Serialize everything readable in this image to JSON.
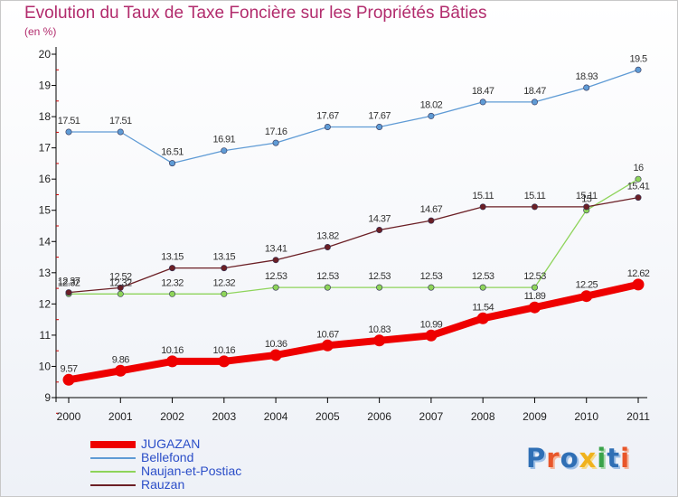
{
  "title": "Evolution du Taux de Taxe Foncière sur les Propriétés Bâties",
  "subtitle": "(en %)",
  "logo": "Proxiti",
  "chart_data": {
    "type": "line",
    "title": "Evolution du Taux de Taxe Foncière sur les Propriétés Bâties",
    "ylabel": "(en %)",
    "xlabel": "",
    "categories": [
      "2000",
      "2001",
      "2002",
      "2003",
      "2004",
      "2005",
      "2006",
      "2007",
      "2008",
      "2009",
      "2010",
      "2011"
    ],
    "ylim": [
      9,
      20
    ],
    "yticks": [
      "9",
      "10",
      "11",
      "12",
      "13",
      "14",
      "15",
      "16",
      "17",
      "18",
      "19",
      "20"
    ],
    "grid": false,
    "legend_position": "bottom-left",
    "series": [
      {
        "name": "JUGAZAN",
        "color": "#ee0000",
        "values": [
          9.57,
          9.86,
          10.16,
          10.16,
          10.36,
          10.67,
          10.83,
          10.99,
          11.54,
          11.89,
          12.25,
          12.62
        ],
        "labels": [
          "9.57",
          "9.86",
          "10.16",
          "10.16",
          "10.36",
          "10.67",
          "10.83",
          "10.99",
          "11.54",
          "11.89",
          "12.25",
          "12.62"
        ]
      },
      {
        "name": "Bellefond",
        "color": "#5f9bd5",
        "values": [
          17.51,
          17.51,
          16.51,
          16.91,
          17.16,
          17.67,
          17.67,
          18.02,
          18.47,
          18.47,
          18.93,
          19.5
        ],
        "labels": [
          "17.51",
          "17.51",
          "16.51",
          "16.91",
          "17.16",
          "17.67",
          "17.67",
          "18.02",
          "18.47",
          "18.47",
          "18.93",
          "19.5"
        ]
      },
      {
        "name": "Naujan-et-Postiac",
        "color": "#8ed45a",
        "values": [
          12.32,
          12.32,
          12.32,
          12.32,
          12.53,
          12.53,
          12.53,
          12.53,
          12.53,
          12.53,
          15,
          16
        ],
        "labels": [
          "12.32",
          "12.32",
          "12.32",
          "12.32",
          "12.53",
          "12.53",
          "12.53",
          "12.53",
          "12.53",
          "12.53",
          "15",
          "16"
        ]
      },
      {
        "name": "Rauzan",
        "color": "#6b1f25",
        "values": [
          12.37,
          12.52,
          13.15,
          13.15,
          13.41,
          13.82,
          14.37,
          14.67,
          15.11,
          15.11,
          15.11,
          15.41
        ],
        "labels": [
          "12.37",
          "12.52",
          "13.15",
          "13.15",
          "13.41",
          "13.82",
          "14.37",
          "14.67",
          "15.11",
          "15.11",
          "15.11",
          "15.41"
        ]
      }
    ]
  },
  "colors": {
    "title": "#b22c6d",
    "axis": "#000000",
    "tick_marks": "#cc0000",
    "legend_text": "#2b4ec8",
    "value_labels": "#333333"
  }
}
